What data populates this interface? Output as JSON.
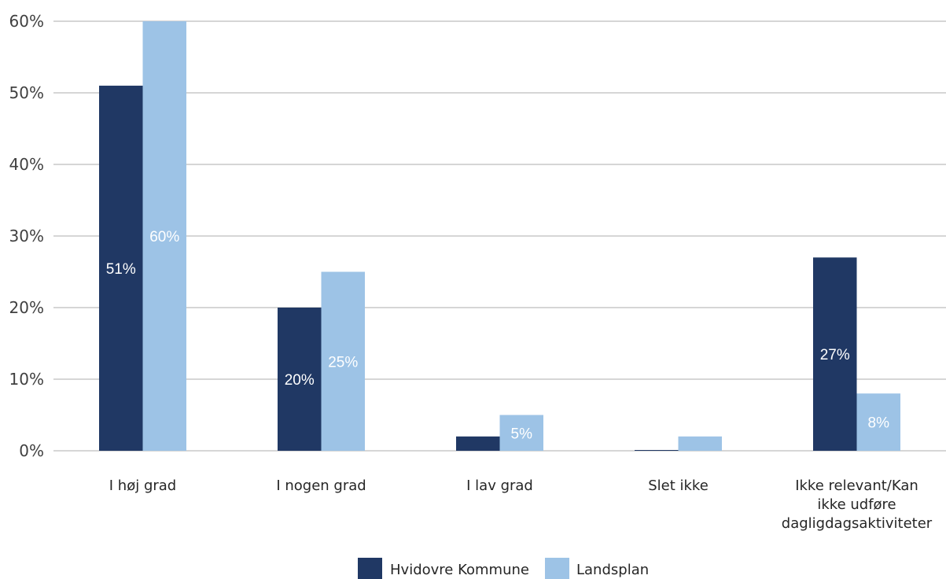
{
  "chart_data": {
    "type": "bar",
    "categories": [
      [
        "I høj grad"
      ],
      [
        "I nogen grad"
      ],
      [
        "I lav grad"
      ],
      [
        "Slet ikke"
      ],
      [
        "Ikke relevant/Kan",
        "ikke udføre",
        "dagligdagsaktiviteter"
      ]
    ],
    "series": [
      {
        "name": "Hvidovre Kommune",
        "color": "#203864",
        "values": [
          51,
          20,
          2,
          0.1,
          27
        ],
        "labels": [
          "51%",
          "20%",
          "",
          "",
          "27%"
        ]
      },
      {
        "name": "Landsplan",
        "color": "#9DC3E6",
        "values": [
          60,
          25,
          5,
          2,
          8
        ],
        "labels": [
          "60%",
          "25%",
          "5%",
          "",
          "8%"
        ]
      }
    ],
    "ylim": [
      0,
      60
    ],
    "yticks": [
      {
        "value": 0,
        "label": "0%"
      },
      {
        "value": 10,
        "label": "10%"
      },
      {
        "value": 20,
        "label": "20%"
      },
      {
        "value": 30,
        "label": "30%"
      },
      {
        "value": 40,
        "label": "40%"
      },
      {
        "value": 50,
        "label": "50%"
      },
      {
        "value": 60,
        "label": "60%"
      }
    ],
    "grid": true,
    "gridColor": "#c8c8c8",
    "legend": "bottom-center"
  }
}
